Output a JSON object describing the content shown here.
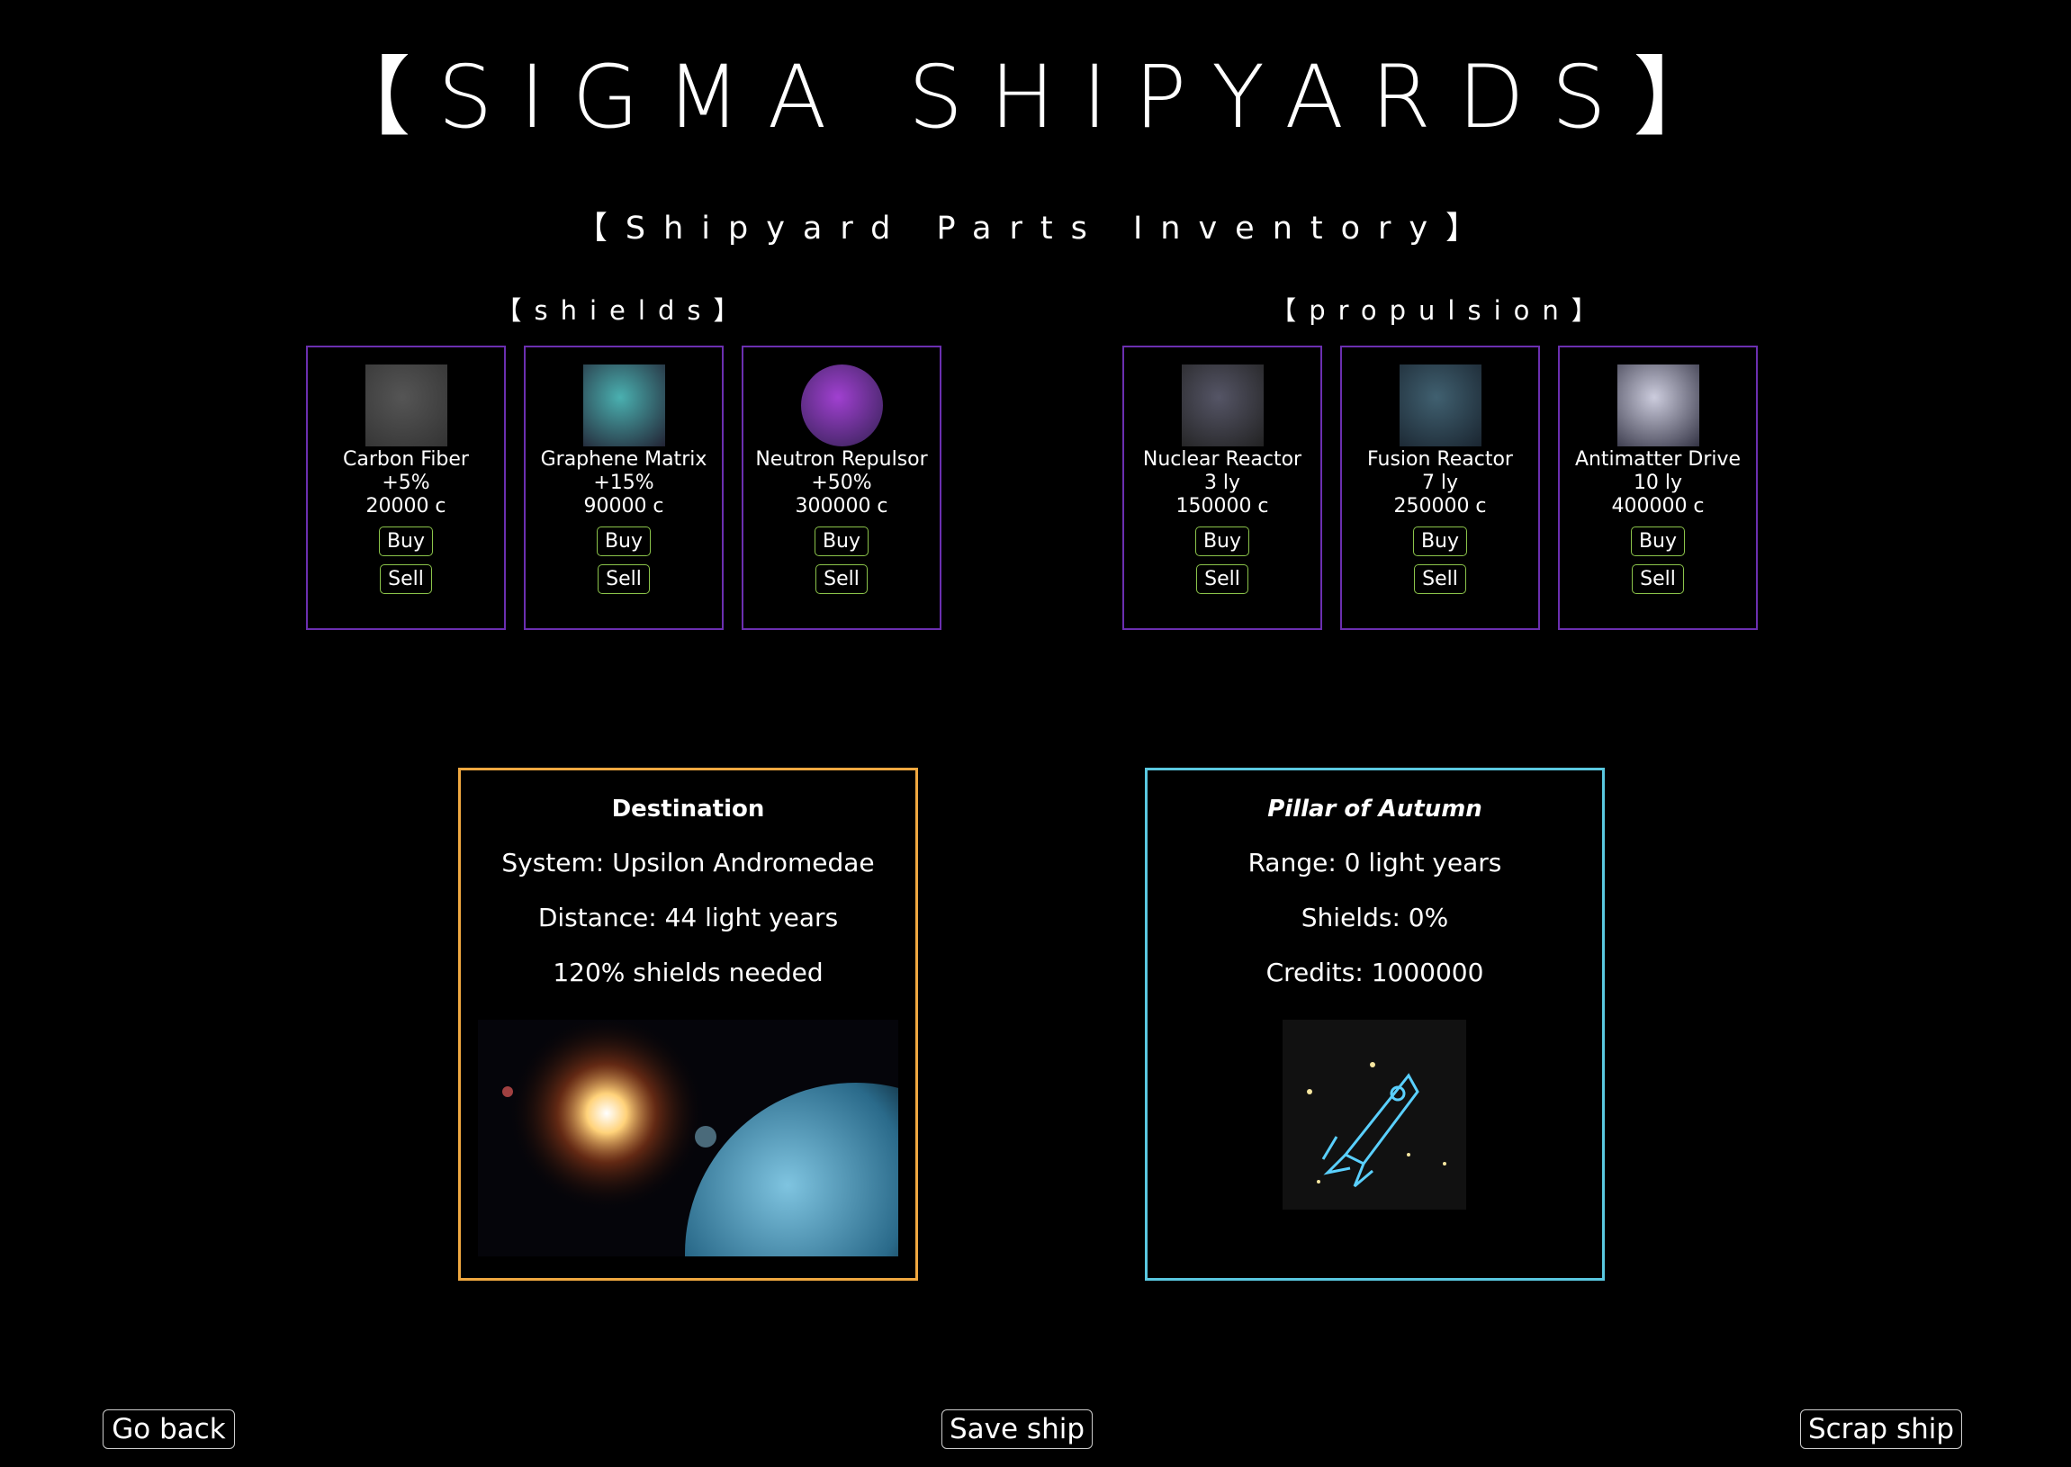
{
  "header": {
    "title": "【SIGMA SHIPYARDS】",
    "subtitle": "【Shipyard Parts Inventory】"
  },
  "buy_label": "Buy",
  "sell_label": "Sell",
  "sections": [
    {
      "label": "【shields】",
      "items": [
        {
          "name": "Carbon Fiber",
          "stat": "+5%",
          "price": "20000 c"
        },
        {
          "name": "Graphene Matrix",
          "stat": "+15%",
          "price": "90000 c"
        },
        {
          "name": "Neutron Repulsor",
          "stat": "+50%",
          "price": "300000 c"
        }
      ]
    },
    {
      "label": "【propulsion】",
      "items": [
        {
          "name": "Nuclear Reactor",
          "stat": "3 ly",
          "price": "150000 c"
        },
        {
          "name": "Fusion Reactor",
          "stat": "7 ly",
          "price": "250000 c"
        },
        {
          "name": "Antimatter Drive",
          "stat": "10 ly",
          "price": "400000 c"
        }
      ]
    }
  ],
  "destination": {
    "title": "Destination",
    "lines": [
      "System: Upsilon Andromedae",
      "Distance: 44 light years",
      "120% shields needed"
    ]
  },
  "ship": {
    "title": "Pillar of Autumn",
    "lines": [
      "Range: 0 light years",
      "Shields: 0%",
      "Credits: 1000000"
    ]
  },
  "footer": {
    "buttons": [
      "Go back",
      "Save ship",
      "Scrap ship"
    ]
  }
}
